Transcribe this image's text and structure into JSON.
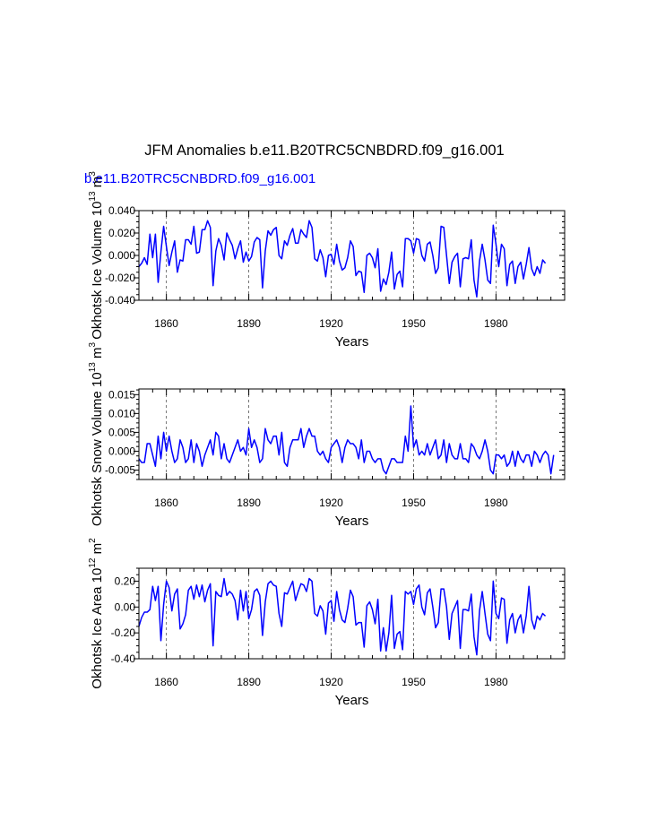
{
  "title": "JFM Anomalies b.e11.B20TRC5CNBDRD.f09_g16.001",
  "subtitle": "b.e11.B20TRC5CNBDRD.f09_g16.001",
  "colors": {
    "series": "#0000ff",
    "axis": "#000000",
    "refline": "#555555"
  },
  "chart_data": [
    {
      "type": "line",
      "ylabel": "Okhotsk Ice Volume 10",
      "ylabel_exp": "13",
      "ylabel_unit": "m",
      "ylabel_unit_exp": "3",
      "xlabel": "Years",
      "xlim": [
        1850,
        2005
      ],
      "ylim": [
        -0.04,
        0.04
      ],
      "yticks": [
        -0.04,
        -0.02,
        0.0,
        0.02,
        0.04
      ],
      "ytick_labels": [
        "-0.040",
        "-0.020",
        "0.000",
        "0.020",
        "0.040"
      ],
      "xticks": [
        1860,
        1890,
        1920,
        1950,
        1980
      ],
      "xtick_labels": [
        "1860",
        "1890",
        "1920",
        "1950",
        "1980"
      ],
      "ref_lines_x": [
        1860,
        1890,
        1920,
        1950,
        1980
      ],
      "x_start": 1850,
      "values": [
        -0.01,
        -0.007,
        -0.002,
        -0.008,
        0.019,
        -0.002,
        0.019,
        -0.024,
        0.003,
        0.026,
        0.008,
        -0.009,
        0.003,
        0.013,
        -0.015,
        -0.004,
        -0.005,
        0.014,
        0.014,
        0.01,
        0.026,
        0.002,
        0.003,
        0.023,
        0.023,
        0.031,
        0.025,
        -0.027,
        0.004,
        0.015,
        0.009,
        -0.004,
        0.02,
        0.014,
        0.009,
        -0.003,
        0.006,
        0.013,
        -0.006,
        0.003,
        -0.005,
        -0.001,
        0.012,
        0.016,
        0.014,
        -0.029,
        0.004,
        0.022,
        0.018,
        0.023,
        0.025,
        0.0,
        -0.003,
        0.013,
        0.009,
        0.018,
        0.024,
        0.011,
        0.011,
        0.023,
        0.019,
        0.016,
        0.031,
        0.025,
        -0.003,
        -0.005,
        0.005,
        -0.002,
        -0.019,
        0.0,
        0.001,
        -0.008,
        0.01,
        -0.005,
        -0.013,
        -0.011,
        -0.002,
        0.013,
        0.008,
        -0.018,
        -0.014,
        -0.015,
        -0.033,
        0.0,
        0.002,
        -0.002,
        -0.011,
        0.006,
        -0.032,
        -0.021,
        -0.026,
        -0.015,
        0.003,
        -0.03,
        -0.017,
        -0.014,
        -0.028,
        0.015,
        0.015,
        0.013,
        0.002,
        0.015,
        0.014,
        0.0,
        -0.005,
        0.01,
        0.012,
        0.0,
        -0.016,
        -0.011,
        0.026,
        0.025,
        0.0,
        -0.025,
        -0.006,
        -0.001,
        0.002,
        -0.028,
        -0.003,
        -0.002,
        -0.003,
        0.014,
        -0.022,
        -0.037,
        -0.005,
        0.01,
        -0.004,
        -0.022,
        -0.025,
        0.027,
        0.01,
        -0.01,
        0.01,
        0.006,
        -0.027,
        -0.008,
        -0.005,
        -0.025,
        -0.01,
        -0.006,
        -0.021,
        -0.008,
        0.007,
        -0.012,
        -0.018,
        -0.01,
        -0.016,
        -0.004,
        -0.007
      ]
    },
    {
      "type": "line",
      "ylabel": "Okhotsk Snow Volume 10",
      "ylabel_exp": "13",
      "ylabel_unit": "m",
      "ylabel_unit_exp": "3",
      "xlabel": "Years",
      "xlim": [
        1850,
        2005
      ],
      "ylim": [
        -0.0075,
        0.0165
      ],
      "yticks": [
        -0.005,
        0.0,
        0.005,
        0.01,
        0.015
      ],
      "ytick_labels": [
        "-0.005",
        "0.000",
        "0.005",
        "0.010",
        "0.015"
      ],
      "xticks": [
        1860,
        1890,
        1920,
        1950,
        1980
      ],
      "xtick_labels": [
        "1860",
        "1890",
        "1920",
        "1950",
        "1980"
      ],
      "ref_lines_x": [
        1860,
        1890,
        1920,
        1950,
        1980
      ],
      "x_start": 1850,
      "values": [
        -0.002,
        -0.003,
        -0.003,
        0.002,
        0.002,
        -0.001,
        -0.004,
        0.004,
        -0.002,
        0.005,
        0.0,
        0.004,
        0.0,
        -0.003,
        -0.002,
        0.003,
        0.001,
        -0.003,
        -0.002,
        0.003,
        -0.003,
        0.002,
        0.0,
        -0.004,
        -0.001,
        0.001,
        0.003,
        -0.001,
        0.005,
        0.004,
        -0.002,
        0.002,
        -0.002,
        -0.003,
        -0.001,
        0.001,
        0.003,
        0.0,
        0.001,
        -0.001,
        0.006,
        0.001,
        0.003,
        0.001,
        -0.003,
        -0.002,
        0.006,
        0.003,
        0.002,
        0.004,
        0.004,
        -0.001,
        0.005,
        -0.003,
        -0.004,
        0.001,
        0.003,
        0.003,
        0.003,
        0.006,
        0.001,
        0.004,
        0.006,
        0.004,
        0.004,
        0.0,
        -0.001,
        0.0,
        -0.002,
        -0.003,
        0.001,
        0.002,
        0.003,
        0.001,
        -0.003,
        0.001,
        0.003,
        0.002,
        0.002,
        0.001,
        -0.002,
        0.003,
        -0.003,
        0.0,
        0.0,
        -0.002,
        -0.003,
        -0.002,
        -0.002,
        -0.005,
        -0.006,
        -0.004,
        -0.002,
        -0.002,
        -0.003,
        -0.003,
        -0.003,
        0.004,
        0.0,
        0.012,
        0.001,
        0.003,
        -0.001,
        0.0,
        -0.001,
        0.002,
        -0.001,
        0.001,
        0.003,
        -0.002,
        -0.001,
        0.003,
        -0.003,
        0.002,
        -0.001,
        -0.002,
        -0.002,
        0.002,
        -0.002,
        -0.002,
        -0.003,
        0.002,
        0.001,
        -0.001,
        -0.002,
        0.0,
        0.003,
        0.0,
        -0.005,
        -0.006,
        -0.001,
        -0.001,
        -0.002,
        -0.001,
        -0.004,
        -0.003,
        0.0,
        -0.004,
        0.0,
        -0.002,
        -0.003,
        -0.001,
        -0.001,
        -0.004,
        0.0,
        -0.001,
        -0.003,
        -0.001,
        0.0,
        -0.001,
        -0.006,
        -0.001
      ]
    },
    {
      "type": "line",
      "ylabel": "Okhotsk Ice Area 10",
      "ylabel_exp": "12",
      "ylabel_unit": "m",
      "ylabel_unit_exp": "2",
      "xlabel": "Years",
      "xlim": [
        1850,
        2005
      ],
      "ylim": [
        -0.4,
        0.3
      ],
      "yticks": [
        -0.4,
        -0.2,
        0.0,
        0.2
      ],
      "ytick_labels": [
        "-0.40",
        "-0.20",
        "0.00",
        "0.20"
      ],
      "xticks": [
        1860,
        1890,
        1920,
        1950,
        1980
      ],
      "xtick_labels": [
        "1860",
        "1890",
        "1920",
        "1950",
        "1980"
      ],
      "ref_lines_x": [
        1860,
        1890,
        1920,
        1950,
        1980
      ],
      "x_start": 1850,
      "values": [
        -0.15,
        -0.08,
        -0.04,
        -0.04,
        -0.02,
        0.16,
        0.05,
        0.16,
        -0.26,
        0.02,
        0.2,
        0.15,
        -0.03,
        0.1,
        0.14,
        -0.17,
        -0.13,
        -0.06,
        0.13,
        0.16,
        0.06,
        0.17,
        0.08,
        0.17,
        0.04,
        0.13,
        0.18,
        -0.3,
        0.12,
        0.09,
        0.08,
        0.22,
        0.09,
        0.12,
        0.1,
        0.05,
        -0.1,
        0.13,
        -0.03,
        0.12,
        -0.09,
        -0.02,
        0.12,
        0.14,
        0.09,
        -0.22,
        0.04,
        0.18,
        0.2,
        0.17,
        0.16,
        -0.05,
        -0.15,
        0.11,
        0.1,
        0.15,
        0.2,
        0.05,
        0.12,
        0.18,
        0.17,
        0.12,
        0.22,
        0.2,
        -0.05,
        -0.07,
        0.01,
        -0.03,
        -0.21,
        0.03,
        0.05,
        -0.11,
        0.12,
        -0.02,
        -0.1,
        -0.12,
        -0.01,
        0.13,
        0.08,
        -0.14,
        -0.12,
        -0.12,
        -0.31,
        0.01,
        0.04,
        -0.02,
        -0.13,
        0.06,
        -0.34,
        -0.16,
        -0.34,
        -0.2,
        0.09,
        -0.32,
        -0.21,
        -0.19,
        -0.33,
        0.12,
        0.1,
        0.12,
        0.02,
        0.14,
        0.17,
        0.0,
        -0.06,
        0.11,
        0.14,
        0.0,
        -0.16,
        -0.12,
        0.14,
        0.14,
        0.0,
        -0.25,
        -0.05,
        0.0,
        0.05,
        -0.32,
        -0.02,
        -0.02,
        -0.03,
        0.1,
        -0.23,
        -0.37,
        -0.03,
        0.12,
        -0.05,
        -0.21,
        -0.26,
        0.2,
        -0.05,
        -0.09,
        0.07,
        0.06,
        -0.28,
        -0.1,
        -0.05,
        -0.2,
        -0.1,
        -0.06,
        -0.2,
        -0.07,
        0.16,
        -0.1,
        -0.17,
        -0.07,
        -0.1,
        -0.05,
        -0.07
      ]
    }
  ]
}
